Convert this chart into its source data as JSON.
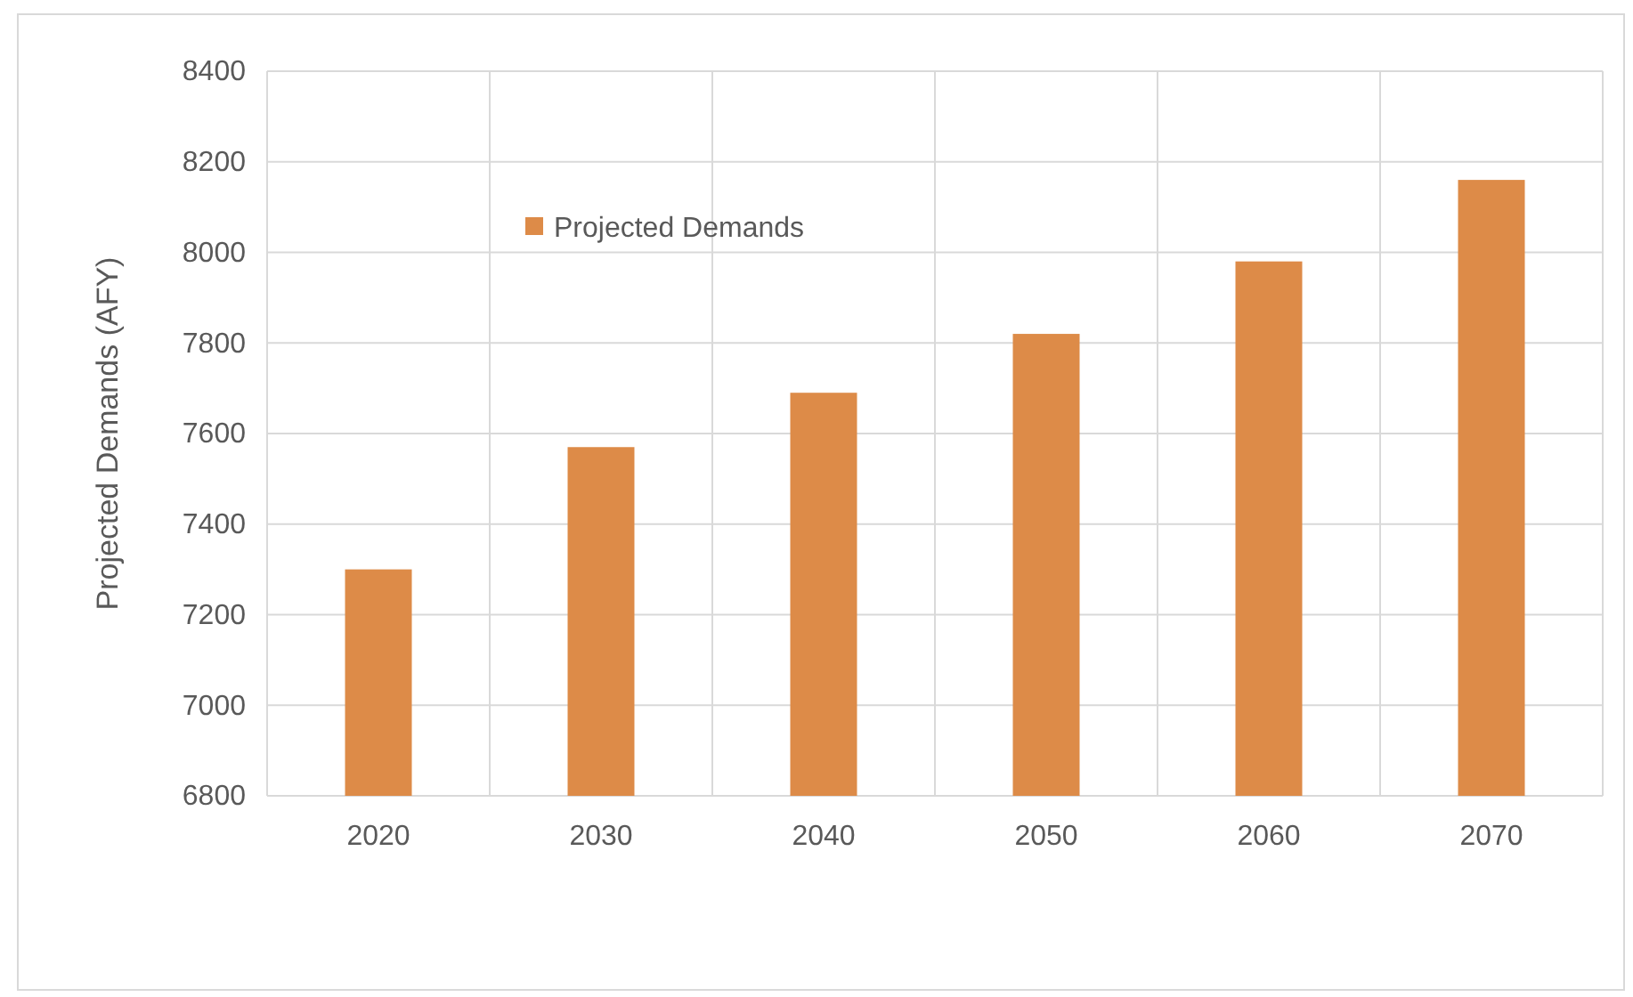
{
  "chart_data": {
    "type": "bar",
    "ylabel": "Projected Demands (AFY)",
    "categories": [
      "2020",
      "2030",
      "2040",
      "2050",
      "2060",
      "2070"
    ],
    "series": [
      {
        "name": "Projected Demands",
        "color": "#dd8b48",
        "values": [
          7300,
          7570,
          7690,
          7820,
          7980,
          8160
        ]
      }
    ],
    "ylim": [
      6800,
      8400
    ],
    "yticks": [
      6800,
      7000,
      7200,
      7400,
      7600,
      7800,
      8000,
      8200,
      8400
    ],
    "grid": true,
    "legend": "top left"
  }
}
